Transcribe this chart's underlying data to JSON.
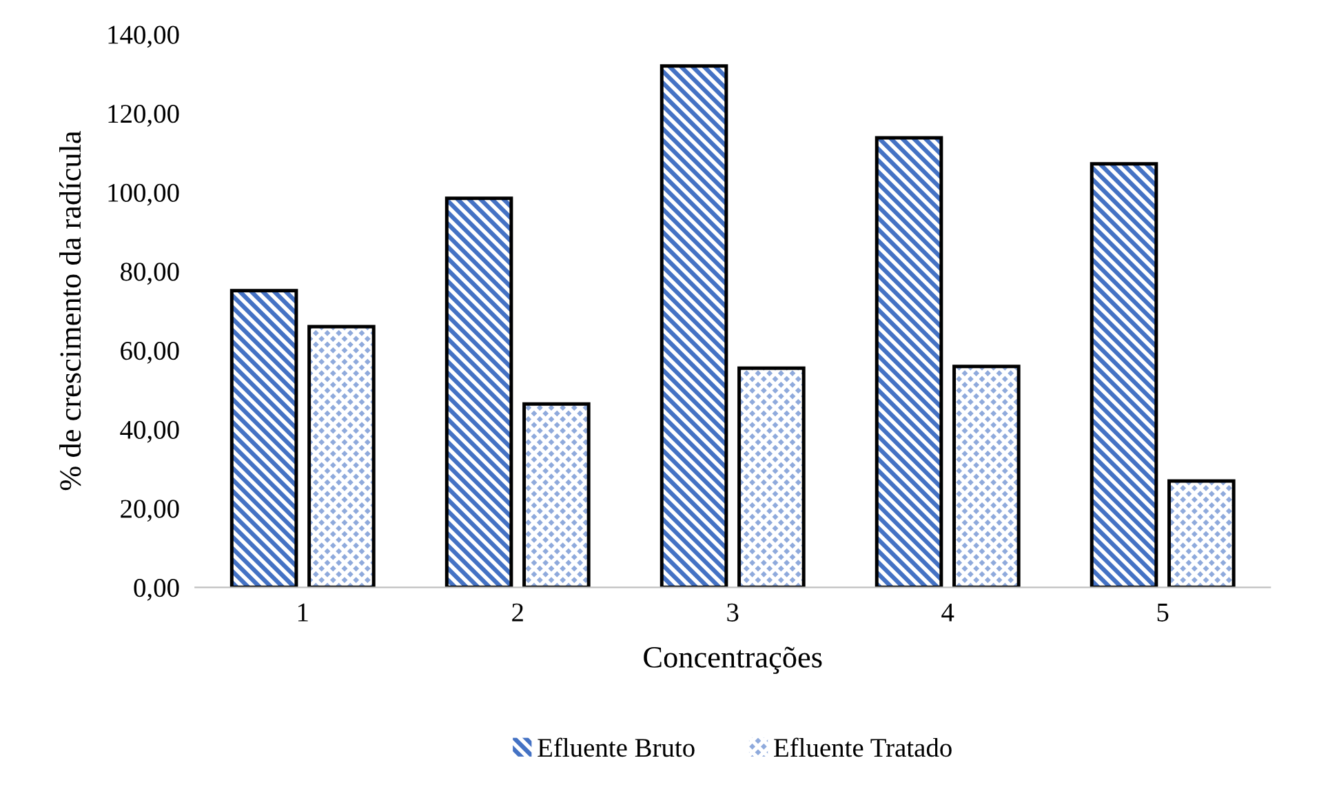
{
  "chart_data": {
    "type": "bar",
    "xlabel": "Concentrações",
    "ylabel": "% de crescimento da radícula",
    "categories": [
      "1",
      "2",
      "3",
      "4",
      "5"
    ],
    "series": [
      {
        "name": "Efluente Bruto",
        "color": "#4472c4",
        "values": [
          75.1,
          98.5,
          132.0,
          113.8,
          107.2
        ]
      },
      {
        "name": "Efluente Tratado",
        "color": "#8faadc",
        "values": [
          66.0,
          46.4,
          55.5,
          55.9,
          26.9
        ]
      }
    ],
    "ylim": [
      0,
      140
    ],
    "yticks": [
      {
        "value": 0,
        "label": "0,00"
      },
      {
        "value": 20,
        "label": "20,00"
      },
      {
        "value": 40,
        "label": "40,00"
      },
      {
        "value": 60,
        "label": "60,00"
      },
      {
        "value": 80,
        "label": "80,00"
      },
      {
        "value": 100,
        "label": "100,00"
      },
      {
        "value": 120,
        "label": "120,00"
      },
      {
        "value": 140,
        "label": "140,00"
      }
    ],
    "grid": false,
    "legend": "bottom"
  }
}
